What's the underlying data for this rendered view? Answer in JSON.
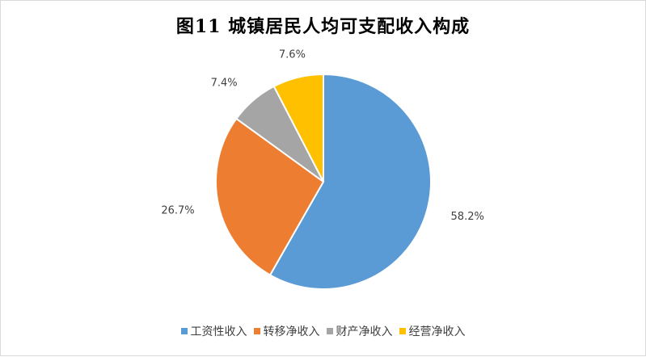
{
  "chart_data": {
    "type": "pie",
    "title": "图11  城镇居民人均可支配收入构成",
    "categories": [
      "工资性收入",
      "转移净收入",
      "财产净收入",
      "经营净收入"
    ],
    "values": [
      58.2,
      26.7,
      7.4,
      7.6
    ],
    "labels": [
      "58.2%",
      "26.7%",
      "7.4%",
      "7.6%"
    ],
    "colors": [
      "#5b9bd5",
      "#ed7d31",
      "#a5a5a5",
      "#ffc000"
    ],
    "legend_position": "bottom"
  }
}
